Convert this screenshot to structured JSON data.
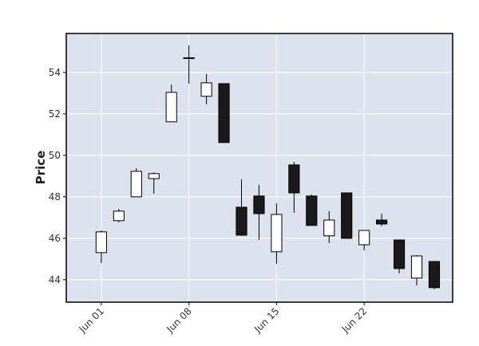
{
  "chart_data": {
    "type": "candlestick",
    "y_label": "Price",
    "categories": [
      "Jun 01",
      null,
      null,
      null,
      null,
      "Jun 08",
      null,
      null,
      null,
      null,
      "Jun 15",
      null,
      null,
      null,
      null,
      "Jun 22",
      null,
      null,
      null,
      null
    ],
    "open": [
      45.31,
      46.85,
      48.0,
      48.88,
      51.62,
      54.67,
      52.85,
      53.46,
      47.5,
      48.04,
      45.35,
      49.54,
      48.04,
      46.12,
      48.19,
      45.69,
      46.88,
      45.92,
      44.08,
      44.88
    ],
    "high": [
      46.38,
      47.42,
      49.38,
      49.19,
      53.42,
      55.31,
      53.92,
      53.46,
      48.85,
      48.58,
      47.69,
      49.69,
      48.12,
      47.31,
      48.19,
      46.38,
      47.19,
      45.92,
      45.19,
      44.88
    ],
    "low": [
      44.81,
      46.77,
      48.0,
      48.15,
      51.62,
      53.46,
      52.46,
      50.62,
      46.12,
      45.92,
      44.77,
      47.23,
      46.62,
      45.77,
      46.0,
      45.42,
      46.58,
      44.31,
      43.73,
      43.54
    ],
    "close": [
      46.31,
      47.31,
      49.23,
      49.12,
      53.04,
      54.71,
      53.5,
      50.62,
      46.15,
      47.19,
      47.15,
      48.19,
      46.62,
      46.88,
      46.0,
      46.38,
      46.69,
      44.54,
      45.15,
      43.62
    ],
    "ylim": [
      42.92,
      55.88
    ],
    "yticks": [
      44,
      46,
      48,
      50,
      52,
      54
    ],
    "up_color": "#ffffff",
    "down_color": "#1a1a1a",
    "grid": true
  }
}
